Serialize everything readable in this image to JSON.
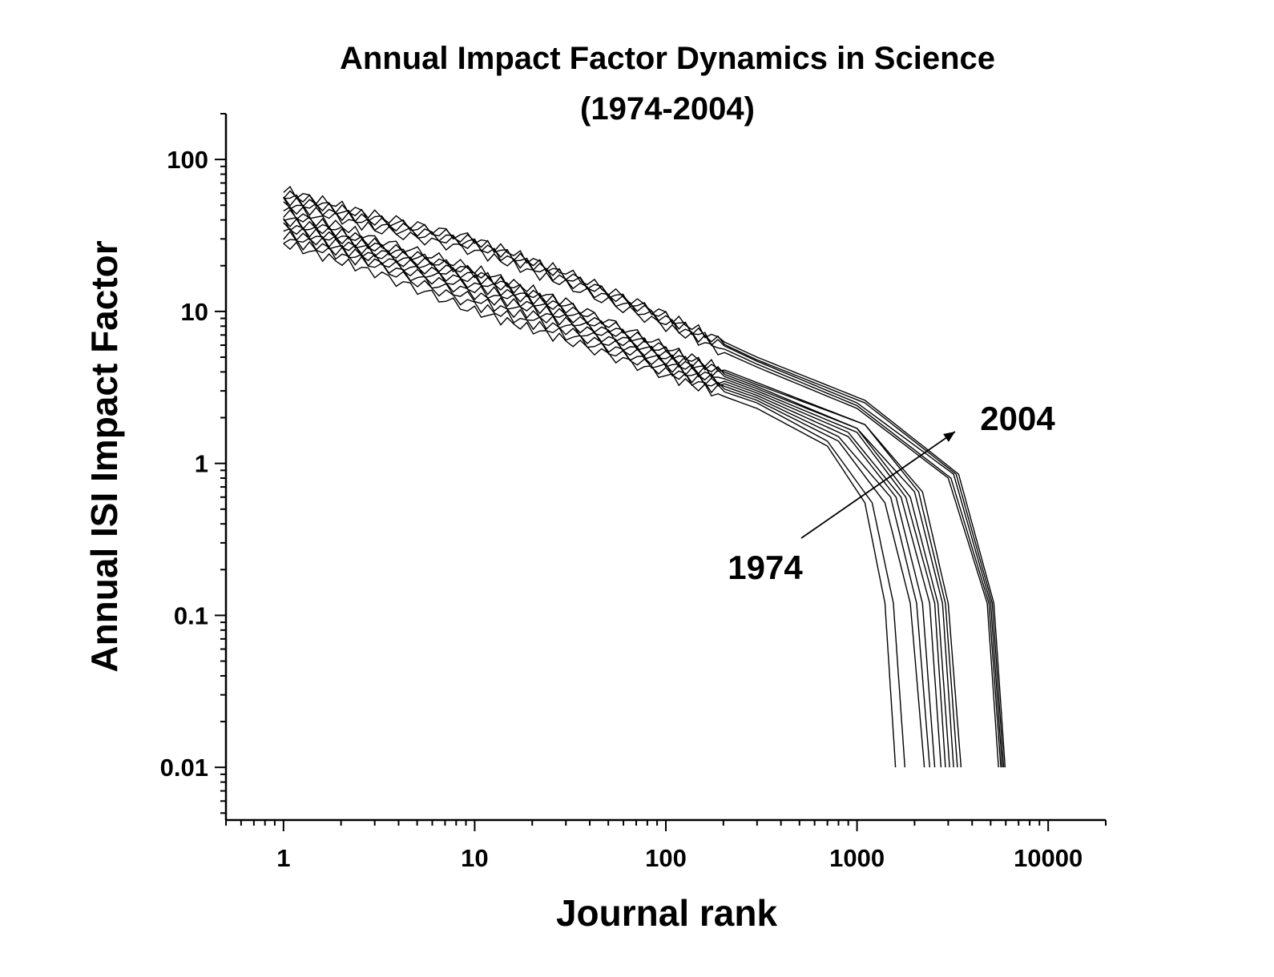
{
  "chart_data": {
    "type": "line",
    "title": "Annual Impact Factor Dynamics in Science",
    "subtitle": "(1974-2004)",
    "xlabel": "Journal rank",
    "ylabel": "Annual ISI Impact Factor",
    "x_scale": "log",
    "y_scale": "log",
    "xlim": [
      0.5,
      20000
    ],
    "ylim": [
      0.0045,
      200
    ],
    "x_ticks": [
      {
        "value": 1,
        "label": "1"
      },
      {
        "value": 10,
        "label": "10"
      },
      {
        "value": 100,
        "label": "100"
      },
      {
        "value": 1000,
        "label": "1000"
      },
      {
        "value": 10000,
        "label": "10000"
      }
    ],
    "y_ticks": [
      {
        "value": 0.01,
        "label": "0.01"
      },
      {
        "value": 0.1,
        "label": "0.1"
      },
      {
        "value": 1,
        "label": "1"
      },
      {
        "value": 10,
        "label": "10"
      },
      {
        "value": 100,
        "label": "100"
      }
    ],
    "grid": false,
    "legend": "none",
    "line_color": "#000000",
    "series": [
      {
        "values": [
          [
            1,
            28
          ],
          [
            3,
            18
          ],
          [
            10,
            10
          ],
          [
            30,
            6.5
          ],
          [
            100,
            3.8
          ],
          [
            300,
            2.3
          ],
          [
            700,
            1.3
          ],
          [
            1100,
            0.55
          ],
          [
            1400,
            0.12
          ],
          [
            1590,
            0.01
          ]
        ]
      },
      {
        "values": [
          [
            1,
            30
          ],
          [
            3,
            20
          ],
          [
            10,
            11
          ],
          [
            30,
            7
          ],
          [
            100,
            4
          ],
          [
            300,
            2.5
          ],
          [
            700,
            1.4
          ],
          [
            1200,
            0.55
          ],
          [
            1550,
            0.12
          ],
          [
            1780,
            0.01
          ]
        ]
      },
      {
        "values": [
          [
            1,
            32
          ],
          [
            3,
            21
          ],
          [
            10,
            12
          ],
          [
            30,
            7.5
          ],
          [
            100,
            4.2
          ],
          [
            300,
            2.6
          ],
          [
            800,
            1.4
          ],
          [
            1400,
            0.55
          ],
          [
            1900,
            0.12
          ],
          [
            2250,
            0.01
          ]
        ]
      },
      {
        "values": [
          [
            1,
            34
          ],
          [
            3,
            22
          ],
          [
            10,
            13
          ],
          [
            30,
            8
          ],
          [
            100,
            4.4
          ],
          [
            300,
            2.7
          ],
          [
            800,
            1.5
          ],
          [
            1500,
            0.6
          ],
          [
            2050,
            0.12
          ],
          [
            2400,
            0.01
          ]
        ]
      },
      {
        "values": [
          [
            1,
            36
          ],
          [
            3,
            23
          ],
          [
            10,
            14
          ],
          [
            30,
            8.5
          ],
          [
            100,
            4.6
          ],
          [
            300,
            2.8
          ],
          [
            900,
            1.5
          ],
          [
            1600,
            0.6
          ],
          [
            2200,
            0.12
          ],
          [
            2550,
            0.01
          ]
        ]
      },
      {
        "values": [
          [
            1,
            38
          ],
          [
            3,
            24
          ],
          [
            10,
            15
          ],
          [
            30,
            9
          ],
          [
            100,
            4.8
          ],
          [
            300,
            2.9
          ],
          [
            900,
            1.6
          ],
          [
            1700,
            0.6
          ],
          [
            2400,
            0.12
          ],
          [
            2750,
            0.01
          ]
        ]
      },
      {
        "values": [
          [
            1,
            40
          ],
          [
            3,
            25
          ],
          [
            10,
            16
          ],
          [
            30,
            9.5
          ],
          [
            100,
            5
          ],
          [
            300,
            3
          ],
          [
            1000,
            1.6
          ],
          [
            1800,
            0.6
          ],
          [
            2550,
            0.12
          ],
          [
            2900,
            0.01
          ]
        ]
      },
      {
        "values": [
          [
            1,
            42
          ],
          [
            3,
            26
          ],
          [
            10,
            17
          ],
          [
            30,
            10
          ],
          [
            100,
            5.2
          ],
          [
            300,
            3.1
          ],
          [
            1000,
            1.7
          ],
          [
            1900,
            0.6
          ],
          [
            2650,
            0.12
          ],
          [
            3050,
            0.01
          ]
        ]
      },
      {
        "values": [
          [
            1,
            45
          ],
          [
            3,
            27
          ],
          [
            10,
            18
          ],
          [
            30,
            10.5
          ],
          [
            100,
            5.4
          ],
          [
            300,
            3.2
          ],
          [
            1000,
            1.7
          ],
          [
            2000,
            0.65
          ],
          [
            2800,
            0.12
          ],
          [
            3200,
            0.01
          ]
        ]
      },
      {
        "values": [
          [
            1,
            47
          ],
          [
            3,
            28
          ],
          [
            10,
            18
          ],
          [
            30,
            11
          ],
          [
            100,
            5.6
          ],
          [
            300,
            3.3
          ],
          [
            1100,
            1.8
          ],
          [
            2100,
            0.65
          ],
          [
            2900,
            0.12
          ],
          [
            3350,
            0.01
          ]
        ]
      },
      {
        "values": [
          [
            1,
            50
          ],
          [
            3,
            30
          ],
          [
            10,
            19
          ],
          [
            30,
            11.5
          ],
          [
            100,
            5.8
          ],
          [
            300,
            3.4
          ],
          [
            1100,
            1.8
          ],
          [
            2200,
            0.65
          ],
          [
            3000,
            0.12
          ],
          [
            3500,
            0.01
          ]
        ]
      },
      {
        "values": [
          [
            1,
            52
          ],
          [
            3,
            35
          ],
          [
            10,
            25
          ],
          [
            30,
            15
          ],
          [
            100,
            8
          ],
          [
            300,
            4.3
          ],
          [
            1000,
            2.3
          ],
          [
            3000,
            0.8
          ],
          [
            4800,
            0.12
          ],
          [
            5500,
            0.01
          ]
        ]
      },
      {
        "values": [
          [
            1,
            55
          ],
          [
            3,
            37
          ],
          [
            10,
            27
          ],
          [
            30,
            16
          ],
          [
            100,
            8.5
          ],
          [
            300,
            4.5
          ],
          [
            1000,
            2.4
          ],
          [
            3100,
            0.8
          ],
          [
            4900,
            0.12
          ],
          [
            5650,
            0.01
          ]
        ]
      },
      {
        "values": [
          [
            1,
            58
          ],
          [
            3,
            39
          ],
          [
            10,
            28
          ],
          [
            30,
            17
          ],
          [
            100,
            9
          ],
          [
            300,
            4.7
          ],
          [
            1000,
            2.5
          ],
          [
            3200,
            0.85
          ],
          [
            5000,
            0.12
          ],
          [
            5750,
            0.01
          ]
        ]
      },
      {
        "values": [
          [
            1,
            60
          ],
          [
            3,
            41
          ],
          [
            10,
            29
          ],
          [
            30,
            17.5
          ],
          [
            100,
            9.2
          ],
          [
            300,
            4.8
          ],
          [
            1100,
            2.5
          ],
          [
            3300,
            0.85
          ],
          [
            5100,
            0.12
          ],
          [
            5850,
            0.01
          ]
        ]
      },
      {
        "values": [
          [
            1,
            63
          ],
          [
            3,
            43
          ],
          [
            10,
            30
          ],
          [
            30,
            18
          ],
          [
            100,
            9.5
          ],
          [
            300,
            5
          ],
          [
            1100,
            2.6
          ],
          [
            3400,
            0.85
          ],
          [
            5200,
            0.12
          ],
          [
            5950,
            0.01
          ]
        ]
      }
    ],
    "annotations": [
      {
        "text": "1974",
        "arrow_from": [
          300,
          0.27
        ],
        "arrow_to": [
          4800,
          1.65
        ]
      },
      {
        "text": "2004"
      }
    ]
  }
}
